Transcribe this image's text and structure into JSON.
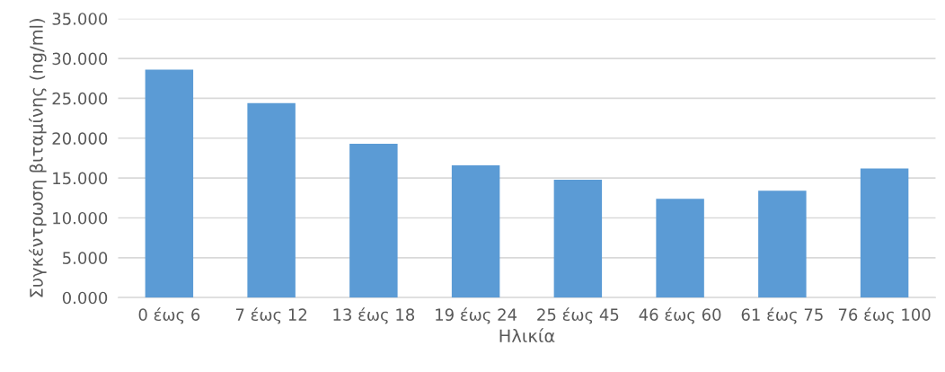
{
  "chart_data": {
    "type": "bar",
    "xlabel": "Ηλικία",
    "ylabel": "Συγκέντρωση βιταμίνης (ng/ml)",
    "categories": [
      "0 έως 6",
      "7 έως 12",
      "13 έως 18",
      "19 έως 24",
      "25 έως 45",
      "46 έως 60",
      "61 έως 75",
      "76 έως 100"
    ],
    "values": [
      28.6,
      24.4,
      19.3,
      16.6,
      14.8,
      12.4,
      13.4,
      16.2
    ],
    "color": "#5b9bd5",
    "ylim": [
      0,
      35
    ],
    "yticks": [
      {
        "value": 0,
        "label": "0.000"
      },
      {
        "value": 5,
        "label": "5.000"
      },
      {
        "value": 10,
        "label": "10.000"
      },
      {
        "value": 15,
        "label": "15.000"
      },
      {
        "value": 20,
        "label": "20.000"
      },
      {
        "value": 25,
        "label": "25.000"
      },
      {
        "value": 30,
        "label": "30.000"
      },
      {
        "value": 35,
        "label": "35.000"
      }
    ],
    "grid": "y"
  }
}
